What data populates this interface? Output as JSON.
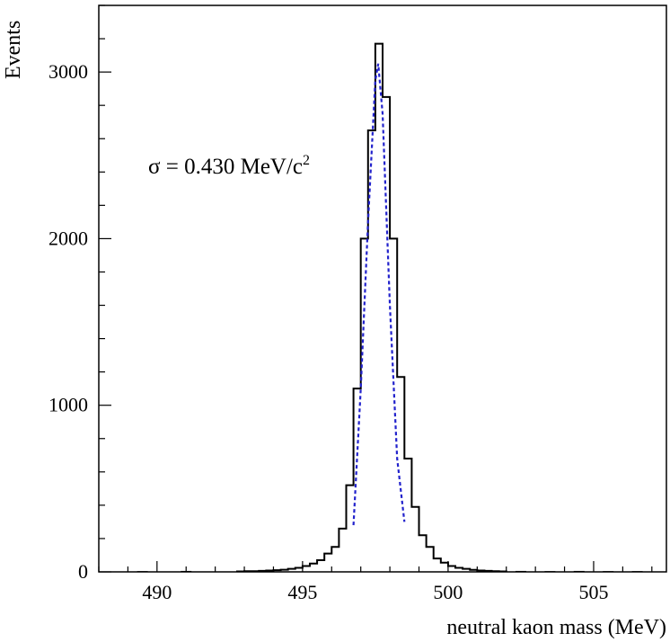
{
  "chart_data": {
    "type": "histogram",
    "xlabel": "neutral kaon mass (MeV)",
    "ylabel": "Events",
    "xlim": [
      488,
      507.5
    ],
    "ylim": [
      0,
      3400
    ],
    "x_ticks": [
      490,
      495,
      500,
      505
    ],
    "y_ticks": [
      0,
      1000,
      2000,
      3000
    ],
    "grid": false,
    "bin_width": 0.25,
    "annotation": {
      "sigma_symbol": "σ",
      "text": " = 0.430 MeV/c",
      "superscript": "2"
    },
    "histogram": {
      "name": "data",
      "color": "#000000",
      "bin_edges": [
        492.75,
        493.0,
        493.25,
        493.5,
        493.75,
        494.0,
        494.25,
        494.5,
        494.75,
        495.0,
        495.25,
        495.5,
        495.75,
        496.0,
        496.25,
        496.5,
        496.75,
        497.0,
        497.25,
        497.5,
        497.75,
        498.0,
        498.25,
        498.5,
        498.75,
        499.0,
        499.25,
        499.5,
        499.75,
        500.0,
        500.25,
        500.5,
        500.75,
        501.0,
        501.25,
        501.5,
        501.75,
        502.0
      ],
      "counts": [
        3,
        4,
        4,
        6,
        8,
        10,
        13,
        18,
        24,
        35,
        50,
        70,
        110,
        150,
        260,
        520,
        1100,
        2000,
        2650,
        3170,
        2850,
        2000,
        1170,
        680,
        390,
        220,
        150,
        80,
        55,
        35,
        24,
        18,
        12,
        8,
        6,
        4,
        3
      ]
    },
    "fit": {
      "name": "gaussian fit",
      "color": "#2222cc",
      "style": "dashed",
      "x": [
        496.75,
        497.0,
        497.25,
        497.5,
        497.6,
        497.75,
        498.0,
        498.25,
        498.5
      ],
      "y": [
        280,
        1100,
        2100,
        2950,
        3050,
        2750,
        1600,
        680,
        300
      ]
    },
    "tail_noise": {
      "x": [
        489.5,
        491.0,
        502.5,
        503.5,
        504.5,
        505.5,
        506.5
      ],
      "y": [
        2,
        3,
        3,
        2,
        3,
        2,
        2
      ]
    }
  }
}
